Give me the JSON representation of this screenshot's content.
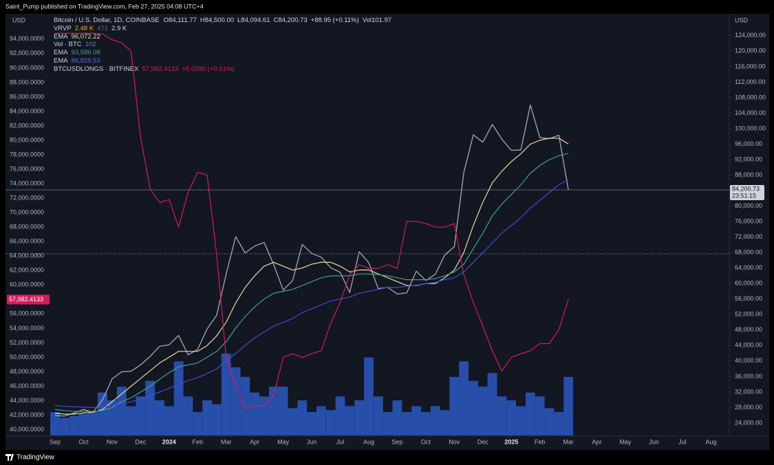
{
  "header": {
    "publisher": "Saint_Pump published on TradingView.com, Feb 27, 2025 04:08 UTC+4",
    "footer": "TradingView"
  },
  "chart_data": {
    "type": "line",
    "y_unit": "USD",
    "y2_unit": "USD",
    "ohlc": [
      "O84,111.77",
      "H84,500.00",
      "L84,094.61",
      "C84,200.73"
    ],
    "change": "+88.95 (+0.11%)",
    "volume_text": "Vol101.97",
    "vrvp": {
      "name": "VRVP",
      "values": [
        "2.48 K",
        "471",
        "2.9 K"
      ]
    },
    "categories": [
      "Sep",
      null,
      null,
      "Oct",
      null,
      null,
      "Nov",
      null,
      null,
      "Dec",
      null,
      null,
      "2024",
      null,
      null,
      "Feb",
      null,
      null,
      "Mar",
      null,
      null,
      "Apr",
      null,
      null,
      "May",
      null,
      null,
      "Jun",
      null,
      null,
      "Jul",
      null,
      null,
      "Aug",
      null,
      null,
      "Sep",
      null,
      null,
      "Oct",
      null,
      null,
      "Nov",
      null,
      null,
      "Dec",
      null,
      null,
      "2025",
      null,
      null,
      "Feb",
      null,
      null,
      "Mar",
      null,
      null,
      "Apr",
      null,
      null,
      "May",
      null,
      null,
      "Jun",
      null,
      null,
      "Jul",
      null,
      null,
      "Aug",
      null,
      null
    ],
    "series": [
      {
        "name": "Bitcoin / U.S. Dollar, 1D, COINBASE",
        "color": "#a7aab3",
        "axis": "y2",
        "values": [
          25900,
          25800,
          26600,
          27500,
          26800,
          30000,
          35400,
          37200,
          37400,
          39000,
          41200,
          43800,
          44200,
          46600,
          41600,
          43000,
          48300,
          51800,
          62400,
          72100,
          67900,
          69700,
          70600,
          64900,
          58300,
          60800,
          70100,
          67800,
          66800,
          64100,
          62900,
          57700,
          68200,
          65400,
          58700,
          59000,
          57300,
          57600,
          63200,
          60800,
          62400,
          67400,
          69500,
          88700,
          98400,
          96500,
          101100,
          97300,
          94400,
          94500,
          106100,
          97700,
          97400,
          98300,
          84200.73,
          null,
          null,
          null,
          null,
          null,
          null,
          null,
          null,
          null,
          null,
          null,
          null,
          null,
          null,
          null,
          null,
          null
        ]
      },
      {
        "name": "EMA",
        "legend_value": "96,072.22",
        "color": "#e6df9a",
        "axis": "y2",
        "values": [
          26500,
          26300,
          26300,
          26600,
          26800,
          27500,
          29500,
          31500,
          33500,
          35500,
          37500,
          39500,
          41000,
          42500,
          42500,
          42500,
          44000,
          46500,
          50000,
          55000,
          59000,
          62000,
          64500,
          65500,
          64500,
          63500,
          64000,
          65000,
          65500,
          65500,
          64500,
          63000,
          63500,
          63500,
          62500,
          61500,
          60500,
          59500,
          59500,
          60000,
          60000,
          61500,
          63500,
          68000,
          75000,
          81000,
          86000,
          89000,
          91500,
          93500,
          96000,
          97000,
          97500,
          97500,
          96072.22,
          null,
          null,
          null,
          null,
          null,
          null,
          null,
          null,
          null,
          null,
          null,
          null,
          null,
          null,
          null,
          null,
          null
        ]
      },
      {
        "name": "EMA",
        "legend_value": "93,586.08",
        "color": "#3aa58f",
        "axis": "y2",
        "values": [
          27500,
          27200,
          27000,
          27000,
          27000,
          27200,
          28000,
          29500,
          30500,
          32000,
          33500,
          35300,
          37000,
          38500,
          39000,
          39500,
          41000,
          42500,
          45000,
          48500,
          51500,
          54000,
          56000,
          57500,
          58000,
          58500,
          59500,
          60500,
          61500,
          62000,
          62000,
          62000,
          62500,
          62500,
          62300,
          62000,
          61500,
          61000,
          61000,
          61000,
          61300,
          62000,
          63000,
          65000,
          69000,
          73000,
          77500,
          80500,
          83000,
          85500,
          88500,
          90500,
          92000,
          93000,
          93586.08,
          null,
          null,
          null,
          null,
          null,
          null,
          null,
          null,
          null,
          null,
          null,
          null,
          null,
          null,
          null,
          null,
          null
        ]
      },
      {
        "name": "EMA",
        "legend_value": "86,829.53",
        "color": "#4a47d8",
        "axis": "y2",
        "values": [
          28500,
          28300,
          28200,
          28100,
          28000,
          28100,
          28500,
          29000,
          29500,
          30200,
          31000,
          32000,
          33000,
          34000,
          35000,
          35700,
          36800,
          38000,
          40000,
          42000,
          44000,
          46000,
          47500,
          49000,
          50000,
          51000,
          52500,
          53500,
          54500,
          55500,
          56000,
          56500,
          57500,
          58000,
          58500,
          59000,
          59000,
          59300,
          59600,
          60000,
          60300,
          61000,
          61500,
          63000,
          65500,
          68000,
          70500,
          73000,
          75000,
          77000,
          79500,
          81500,
          83500,
          85500,
          86829.53,
          null,
          null,
          null,
          null,
          null,
          null,
          null,
          null,
          null,
          null,
          null,
          null,
          null,
          null,
          null,
          null,
          null
        ]
      },
      {
        "name": "BTCUSDLONGS · BITFINEX",
        "legend_value": "57,982.4133",
        "legend_change": "+5.0290 (+0.01%)",
        "color": "#d81b5c",
        "axis": "y",
        "values": [
          94800,
          94800,
          94800,
          94800,
          94800,
          94700,
          93900,
          93500,
          92300,
          80400,
          73300,
          71400,
          71800,
          68000,
          72800,
          75600,
          75200,
          64200,
          50000,
          46200,
          42900,
          43300,
          43300,
          44800,
          50000,
          50500,
          50000,
          50500,
          50900,
          54700,
          57600,
          61400,
          62800,
          62300,
          62300,
          62800,
          62300,
          68800,
          68800,
          68500,
          68000,
          68000,
          68500,
          61400,
          57600,
          54300,
          50900,
          48100,
          50000,
          50500,
          50900,
          51900,
          51900,
          53800,
          57982.4133,
          null,
          null,
          null,
          null,
          null,
          null,
          null,
          null,
          null,
          null,
          null,
          null,
          null,
          null,
          null,
          null,
          null
        ]
      }
    ],
    "volume": {
      "name": "Vol · BTC",
      "legend_value": "102",
      "color": "#2f62d6",
      "vlim": [
        0,
        60000
      ],
      "values": [
        12000,
        9000,
        10000,
        11000,
        12000,
        22000,
        18000,
        25000,
        15000,
        20000,
        28000,
        18000,
        15000,
        38000,
        20000,
        12000,
        18000,
        16000,
        42000,
        35000,
        30000,
        22000,
        20000,
        25000,
        25000,
        14000,
        18000,
        12000,
        15000,
        13000,
        20000,
        15000,
        18000,
        40000,
        20000,
        12000,
        18000,
        12000,
        15000,
        12000,
        15000,
        13000,
        30000,
        38000,
        28000,
        25000,
        32000,
        20000,
        18000,
        15000,
        22000,
        20000,
        14000,
        12000,
        30000,
        null,
        null,
        null,
        null,
        null,
        null,
        null,
        null,
        null,
        null,
        null,
        null,
        null,
        null,
        null,
        null,
        null
      ]
    },
    "ylim": [
      39200,
      95600
    ],
    "yticks": [
      {
        "value": 40000,
        "label": "40,000.0000"
      },
      {
        "value": 42000,
        "label": "42,000.0000"
      },
      {
        "value": 44000,
        "label": "44,000.0000"
      },
      {
        "value": 46000,
        "label": "46,000.0000"
      },
      {
        "value": 48000,
        "label": "48,000.0000"
      },
      {
        "value": 50000,
        "label": "50,000.0000"
      },
      {
        "value": 52000,
        "label": "52,000.0000"
      },
      {
        "value": 54000,
        "label": "54,000.0000"
      },
      {
        "value": 56000,
        "label": "56,000.0000"
      },
      {
        "value": 60000,
        "label": "60,000.0000"
      },
      {
        "value": 62000,
        "label": "62,000.0000"
      },
      {
        "value": 64000,
        "label": "64,000.0000"
      },
      {
        "value": 66000,
        "label": "66,000.0000"
      },
      {
        "value": 68000,
        "label": "68,000.0000"
      },
      {
        "value": 70000,
        "label": "70,000.0000"
      },
      {
        "value": 72000,
        "label": "72,000.0000"
      },
      {
        "value": 74000,
        "label": "74,000.0000"
      },
      {
        "value": 76000,
        "label": "76,000.0000"
      },
      {
        "value": 78000,
        "label": "78,000.0000"
      },
      {
        "value": 80000,
        "label": "80,000.0000"
      },
      {
        "value": 82000,
        "label": "82,000.0000"
      },
      {
        "value": 84000,
        "label": "84,000.0000"
      },
      {
        "value": 86000,
        "label": "86,000.0000"
      },
      {
        "value": 88000,
        "label": "88,000.0000"
      },
      {
        "value": 90000,
        "label": "90,000.0000"
      },
      {
        "value": 92000,
        "label": "92,000.0000"
      },
      {
        "value": 94000,
        "label": "94,000.0000"
      }
    ],
    "y2lim": [
      20800,
      126100
    ],
    "y2ticks": [
      {
        "value": 24000,
        "label": "24,000.00"
      },
      {
        "value": 28000,
        "label": "28,000.00"
      },
      {
        "value": 32000,
        "label": "32,000.00"
      },
      {
        "value": 36000,
        "label": "36,000.00"
      },
      {
        "value": 40000,
        "label": "40,000.00"
      },
      {
        "value": 44000,
        "label": "44,000.00"
      },
      {
        "value": 48000,
        "label": "48,000.00"
      },
      {
        "value": 52000,
        "label": "52,000.00"
      },
      {
        "value": 56000,
        "label": "56,000.00"
      },
      {
        "value": 60000,
        "label": "60,000.00"
      },
      {
        "value": 64000,
        "label": "64,000.00"
      },
      {
        "value": 68000,
        "label": "68,000.00"
      },
      {
        "value": 72000,
        "label": "72,000.00"
      },
      {
        "value": 76000,
        "label": "76,000.00"
      },
      {
        "value": 80000,
        "label": "80,000.00"
      },
      {
        "value": 88000,
        "label": "88,000.00"
      },
      {
        "value": 92000,
        "label": "92,000.00"
      },
      {
        "value": 96000,
        "label": "96,000.00"
      },
      {
        "value": 100000,
        "label": "100,000.00"
      },
      {
        "value": 104000,
        "label": "104,000.00"
      },
      {
        "value": 108000,
        "label": "108,000.00"
      },
      {
        "value": 112000,
        "label": "112,000.00"
      },
      {
        "value": 116000,
        "label": "116,000.00"
      },
      {
        "value": 120000,
        "label": "120,000.00"
      },
      {
        "value": 124000,
        "label": "124,000.00"
      }
    ],
    "last_price": {
      "value": 84200.73,
      "label": "84,200.73"
    },
    "countdown": "23:51:15",
    "last_longs": {
      "value": 57982.4133,
      "label": "57,982.4133"
    },
    "poc": 67700,
    "grid": false
  }
}
